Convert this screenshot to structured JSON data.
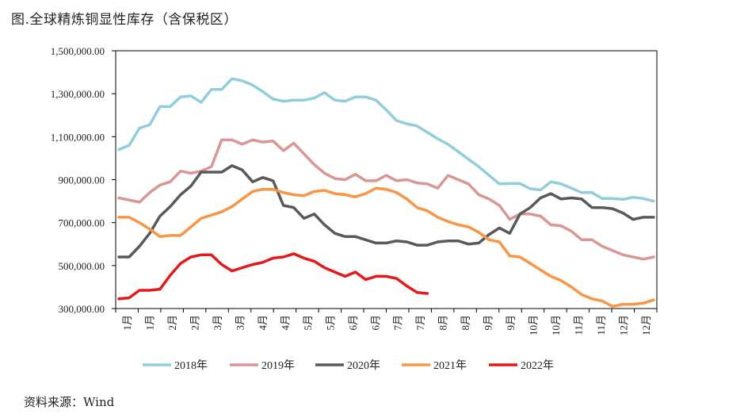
{
  "title": "图.全球精炼铜显性库存（含保税区）",
  "source": "资料来源：Wind",
  "chart_data": {
    "type": "line",
    "ylim": [
      300000,
      1500000
    ],
    "y_ticks": [
      "1,500,000.00",
      "1,300,000.00",
      "1,100,000.00",
      "900,000.00",
      "700,000.00",
      "500,000.00",
      "300,000.00"
    ],
    "y_tick_values": [
      1500000,
      1300000,
      1100000,
      900000,
      700000,
      500000,
      300000
    ],
    "x_labels": [
      "1月",
      "1月",
      "2月",
      "2月",
      "3月",
      "3月",
      "4月",
      "4月",
      "5月",
      "5月",
      "6月",
      "6月",
      "7月",
      "7月",
      "8月",
      "8月",
      "9月",
      "9月",
      "10月",
      "10月",
      "11月",
      "11月",
      "12月",
      "12月"
    ],
    "n_points": 53,
    "legend_position": "bottom",
    "series": [
      {
        "name": "2018年",
        "color": "#92cddc",
        "values": [
          1040000,
          1060000,
          1140000,
          1155000,
          1240000,
          1240000,
          1285000,
          1290000,
          1260000,
          1320000,
          1320000,
          1370000,
          1360000,
          1340000,
          1310000,
          1275000,
          1265000,
          1270000,
          1270000,
          1280000,
          1305000,
          1270000,
          1265000,
          1285000,
          1285000,
          1270000,
          1225000,
          1175000,
          1160000,
          1150000,
          1120000,
          1090000,
          1065000,
          1030000,
          995000,
          960000,
          920000,
          880000,
          882000,
          882000,
          858000,
          852000,
          890000,
          880000,
          860000,
          840000,
          840000,
          812000,
          812000,
          808000,
          818000,
          812000,
          800000
        ]
      },
      {
        "name": "2019年",
        "color": "#d99694",
        "values": [
          815000,
          805000,
          795000,
          840000,
          875000,
          890000,
          940000,
          930000,
          940000,
          960000,
          1085000,
          1085000,
          1065000,
          1085000,
          1075000,
          1080000,
          1035000,
          1070000,
          1020000,
          970000,
          930000,
          905000,
          900000,
          925000,
          895000,
          895000,
          920000,
          895000,
          900000,
          885000,
          880000,
          860000,
          920000,
          900000,
          880000,
          830000,
          810000,
          780000,
          715000,
          740000,
          740000,
          730000,
          690000,
          685000,
          660000,
          620000,
          620000,
          590000,
          570000,
          550000,
          540000,
          530000,
          540000
        ]
      },
      {
        "name": "2020年",
        "color": "#595959",
        "values": [
          540000,
          540000,
          590000,
          650000,
          730000,
          775000,
          830000,
          870000,
          935000,
          935000,
          935000,
          965000,
          945000,
          890000,
          910000,
          895000,
          780000,
          770000,
          720000,
          740000,
          690000,
          650000,
          635000,
          635000,
          620000,
          605000,
          605000,
          615000,
          610000,
          595000,
          595000,
          610000,
          615000,
          615000,
          600000,
          605000,
          645000,
          675000,
          650000,
          740000,
          770000,
          815000,
          835000,
          810000,
          815000,
          810000,
          770000,
          770000,
          765000,
          745000,
          715000,
          725000,
          725000
        ]
      },
      {
        "name": "2021年",
        "color": "#f79646",
        "values": [
          725000,
          725000,
          700000,
          670000,
          635000,
          640000,
          640000,
          680000,
          720000,
          735000,
          750000,
          775000,
          810000,
          845000,
          855000,
          855000,
          840000,
          830000,
          825000,
          845000,
          850000,
          835000,
          830000,
          820000,
          835000,
          860000,
          855000,
          840000,
          810000,
          770000,
          755000,
          725000,
          705000,
          690000,
          680000,
          655000,
          620000,
          610000,
          545000,
          540000,
          510000,
          480000,
          450000,
          430000,
          400000,
          365000,
          345000,
          335000,
          310000,
          320000,
          320000,
          325000,
          340000
        ]
      },
      {
        "name": "2022年",
        "color": "#e31a1c",
        "values": [
          345000,
          350000,
          385000,
          385000,
          390000,
          455000,
          510000,
          540000,
          550000,
          550000,
          505000,
          475000,
          490000,
          505000,
          515000,
          535000,
          540000,
          555000,
          535000,
          520000,
          490000,
          470000,
          450000,
          470000,
          435000,
          450000,
          450000,
          440000,
          405000,
          375000,
          370000
        ]
      }
    ]
  }
}
